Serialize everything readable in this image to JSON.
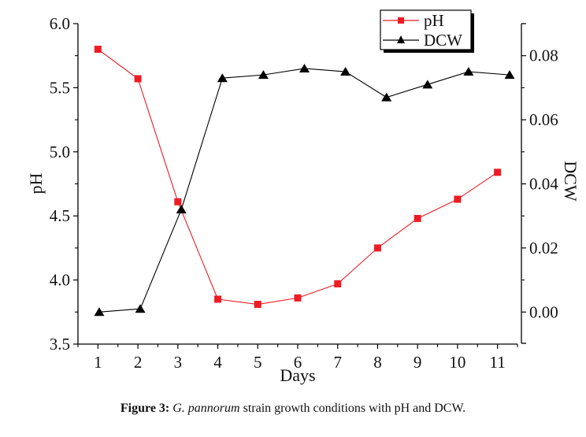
{
  "chart_data": {
    "type": "line",
    "title": "",
    "xlabel": "Days",
    "ylabel": "pH",
    "y2label": "DCW",
    "x": [
      1,
      2,
      3,
      4,
      5,
      6,
      7,
      8,
      9,
      10,
      11
    ],
    "xlim": [
      0.5,
      11.5
    ],
    "ylim": [
      3.5,
      6.0
    ],
    "y2lim": [
      -0.01,
      0.09
    ],
    "x_ticks": [
      "1",
      "2",
      "3",
      "4",
      "5",
      "6",
      "7",
      "8",
      "9",
      "10",
      "11"
    ],
    "y_ticks": [
      "3.5",
      "4.0",
      "4.5",
      "5.0",
      "5.5",
      "6.0"
    ],
    "y_tick_values": [
      3.5,
      4.0,
      4.5,
      5.0,
      5.5,
      6.0
    ],
    "y2_ticks": [
      "0.00",
      "0.02",
      "0.04",
      "0.06",
      "0.08"
    ],
    "y2_tick_values": [
      0.0,
      0.02,
      0.04,
      0.06,
      0.08
    ],
    "grid": false,
    "legend_position": "top-right",
    "series": [
      {
        "name": "pH",
        "axis": "left",
        "marker": "square",
        "color": "#ED1C24",
        "values": [
          5.8,
          5.57,
          4.61,
          3.85,
          3.81,
          3.86,
          3.97,
          4.25,
          4.48,
          4.63,
          4.84
        ]
      },
      {
        "name": "DCW",
        "axis": "right",
        "marker": "triangle",
        "color": "#000000",
        "values": [
          0.0,
          0.001,
          0.032,
          0.073,
          0.074,
          0.076,
          0.075,
          0.067,
          0.071,
          0.075,
          0.074
        ]
      }
    ]
  },
  "caption": {
    "label": "Figure 3:",
    "species": "G. pannorum",
    "text": " strain growth conditions with pH and DCW."
  }
}
